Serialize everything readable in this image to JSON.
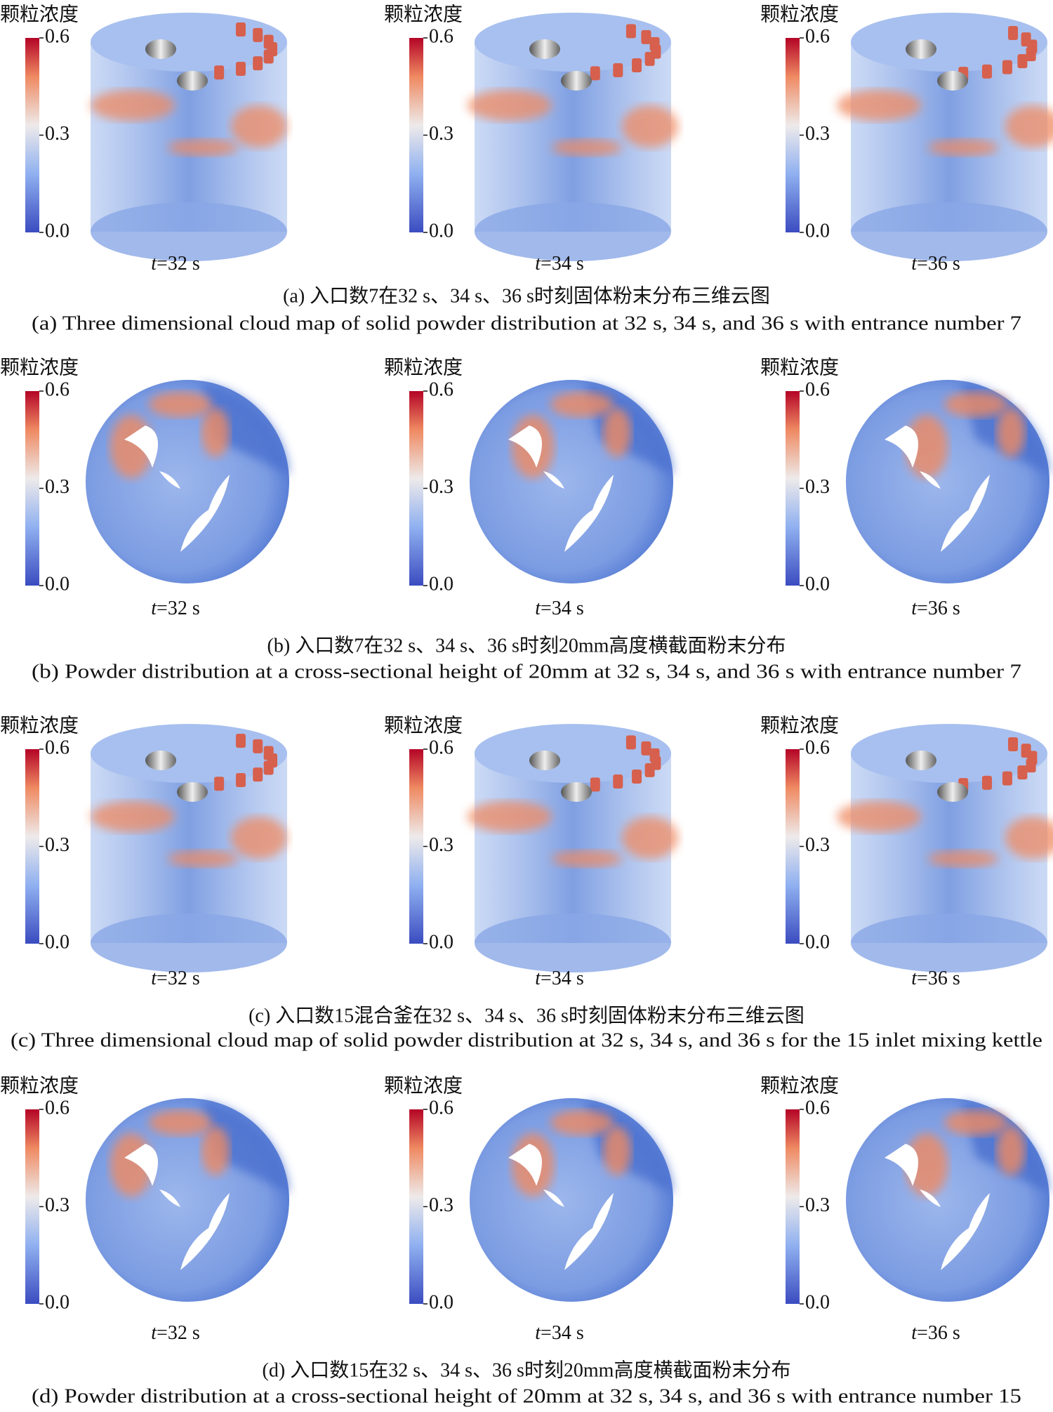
{
  "figure": {
    "rows": [
      {
        "type": "3d",
        "panels": [
          {
            "colorbar": {
              "title": "颗粒浓度",
              "lim": [
                0,
                0.6
              ],
              "ticks": [
                0.6,
                0.3,
                {
                  "value": 0,
                  "label": "0.0"
                }
              ]
            },
            "time": {
              "var": "t",
              "text": "=32 s"
            }
          },
          {
            "colorbar": {
              "title": "颗粒浓度",
              "lim": [
                0,
                0.6
              ],
              "ticks": [
                0.6,
                0.3,
                {
                  "value": 0,
                  "label": "0.0"
                }
              ]
            },
            "time": {
              "var": "t",
              "text": "=34 s"
            }
          },
          {
            "colorbar": {
              "title": "颗粒浓度",
              "lim": [
                0,
                0.6
              ],
              "ticks": [
                0.6,
                0.3,
                {
                  "value": 0,
                  "label": "0.0"
                }
              ]
            },
            "time": {
              "var": "t",
              "text": "=36 s"
            }
          }
        ],
        "caption_zh": "(a) 入口数7在32 s、34 s、36 s时刻固体粉末分布三维云图",
        "caption_en": "(a) Three dimensional cloud map of solid powder distribution at 32 s, 34 s, and 36 s with entrance number 7"
      },
      {
        "type": "section",
        "panels": [
          {
            "colorbar": {
              "title": "颗粒浓度",
              "lim": [
                0,
                0.6
              ],
              "ticks": [
                0.6,
                0.3,
                {
                  "value": 0,
                  "label": "0.0"
                }
              ]
            },
            "time": {
              "var": "t",
              "text": "=32 s"
            }
          },
          {
            "colorbar": {
              "title": "颗粒浓度",
              "lim": [
                0,
                0.6
              ],
              "ticks": [
                0.6,
                0.3,
                {
                  "value": 0,
                  "label": "0.0"
                }
              ]
            },
            "time": {
              "var": "t",
              "text": "=34 s"
            }
          },
          {
            "colorbar": {
              "title": "颗粒浓度",
              "lim": [
                0,
                0.6
              ],
              "ticks": [
                0.6,
                0.3,
                {
                  "value": 0,
                  "label": "0.0"
                }
              ]
            },
            "time": {
              "var": "t",
              "text": "=36 s"
            }
          }
        ],
        "caption_zh": "(b) 入口数7在32 s、34 s、36 s时刻20mm高度横截面粉末分布",
        "caption_en": "(b) Powder distribution at a cross-sectional height of 20mm at 32 s, 34 s, and 36 s with entrance number 7"
      },
      {
        "type": "3d",
        "panels": [
          {
            "colorbar": {
              "title": "颗粒浓度",
              "lim": [
                0,
                0.6
              ],
              "ticks": [
                0.6,
                0.3,
                {
                  "value": 0,
                  "label": "0.0"
                }
              ]
            },
            "time": {
              "var": "t",
              "text": "=32 s"
            }
          },
          {
            "colorbar": {
              "title": "颗粒浓度",
              "lim": [
                0,
                0.6
              ],
              "ticks": [
                0.6,
                0.3,
                {
                  "value": 0,
                  "label": "0.0"
                }
              ]
            },
            "time": {
              "var": "t",
              "text": "=34 s"
            }
          },
          {
            "colorbar": {
              "title": "颗粒浓度",
              "lim": [
                0,
                0.6
              ],
              "ticks": [
                0.6,
                0.3,
                {
                  "value": 0,
                  "label": "0.0"
                }
              ]
            },
            "time": {
              "var": "t",
              "text": "=36 s"
            }
          }
        ],
        "caption_zh": "(c) 入口数15混合釜在32 s、34 s、36 s时刻固体粉末分布三维云图",
        "caption_en": "(c) Three dimensional cloud map of solid powder distribution at 32 s, 34 s, and 36 s for the 15 inlet mixing kettle"
      },
      {
        "type": "section",
        "panels": [
          {
            "colorbar": {
              "title": "颗粒浓度",
              "lim": [
                0,
                0.6
              ],
              "ticks": [
                0.6,
                0.3,
                {
                  "value": 0,
                  "label": "0.0"
                }
              ]
            },
            "time": {
              "var": "t",
              "text": "=32 s"
            }
          },
          {
            "colorbar": {
              "title": "颗粒浓度",
              "lim": [
                0,
                0.6
              ],
              "ticks": [
                0.6,
                0.3,
                {
                  "value": 0,
                  "label": "0.0"
                }
              ]
            },
            "time": {
              "var": "t",
              "text": "=34 s"
            }
          },
          {
            "colorbar": {
              "title": "颗粒浓度",
              "lim": [
                0,
                0.6
              ],
              "ticks": [
                0.6,
                0.3,
                {
                  "value": 0,
                  "label": "0.0"
                }
              ]
            },
            "time": {
              "var": "t",
              "text": "=36 s"
            }
          }
        ],
        "caption_zh": "(d) 入口数15在32 s、34 s、36 s时刻20mm高度横截面粉末分布",
        "caption_en": "(d) Powder distribution at a cross-sectional height of 20mm at 32 s, 34 s, and 36 s with entrance number 15"
      }
    ]
  }
}
